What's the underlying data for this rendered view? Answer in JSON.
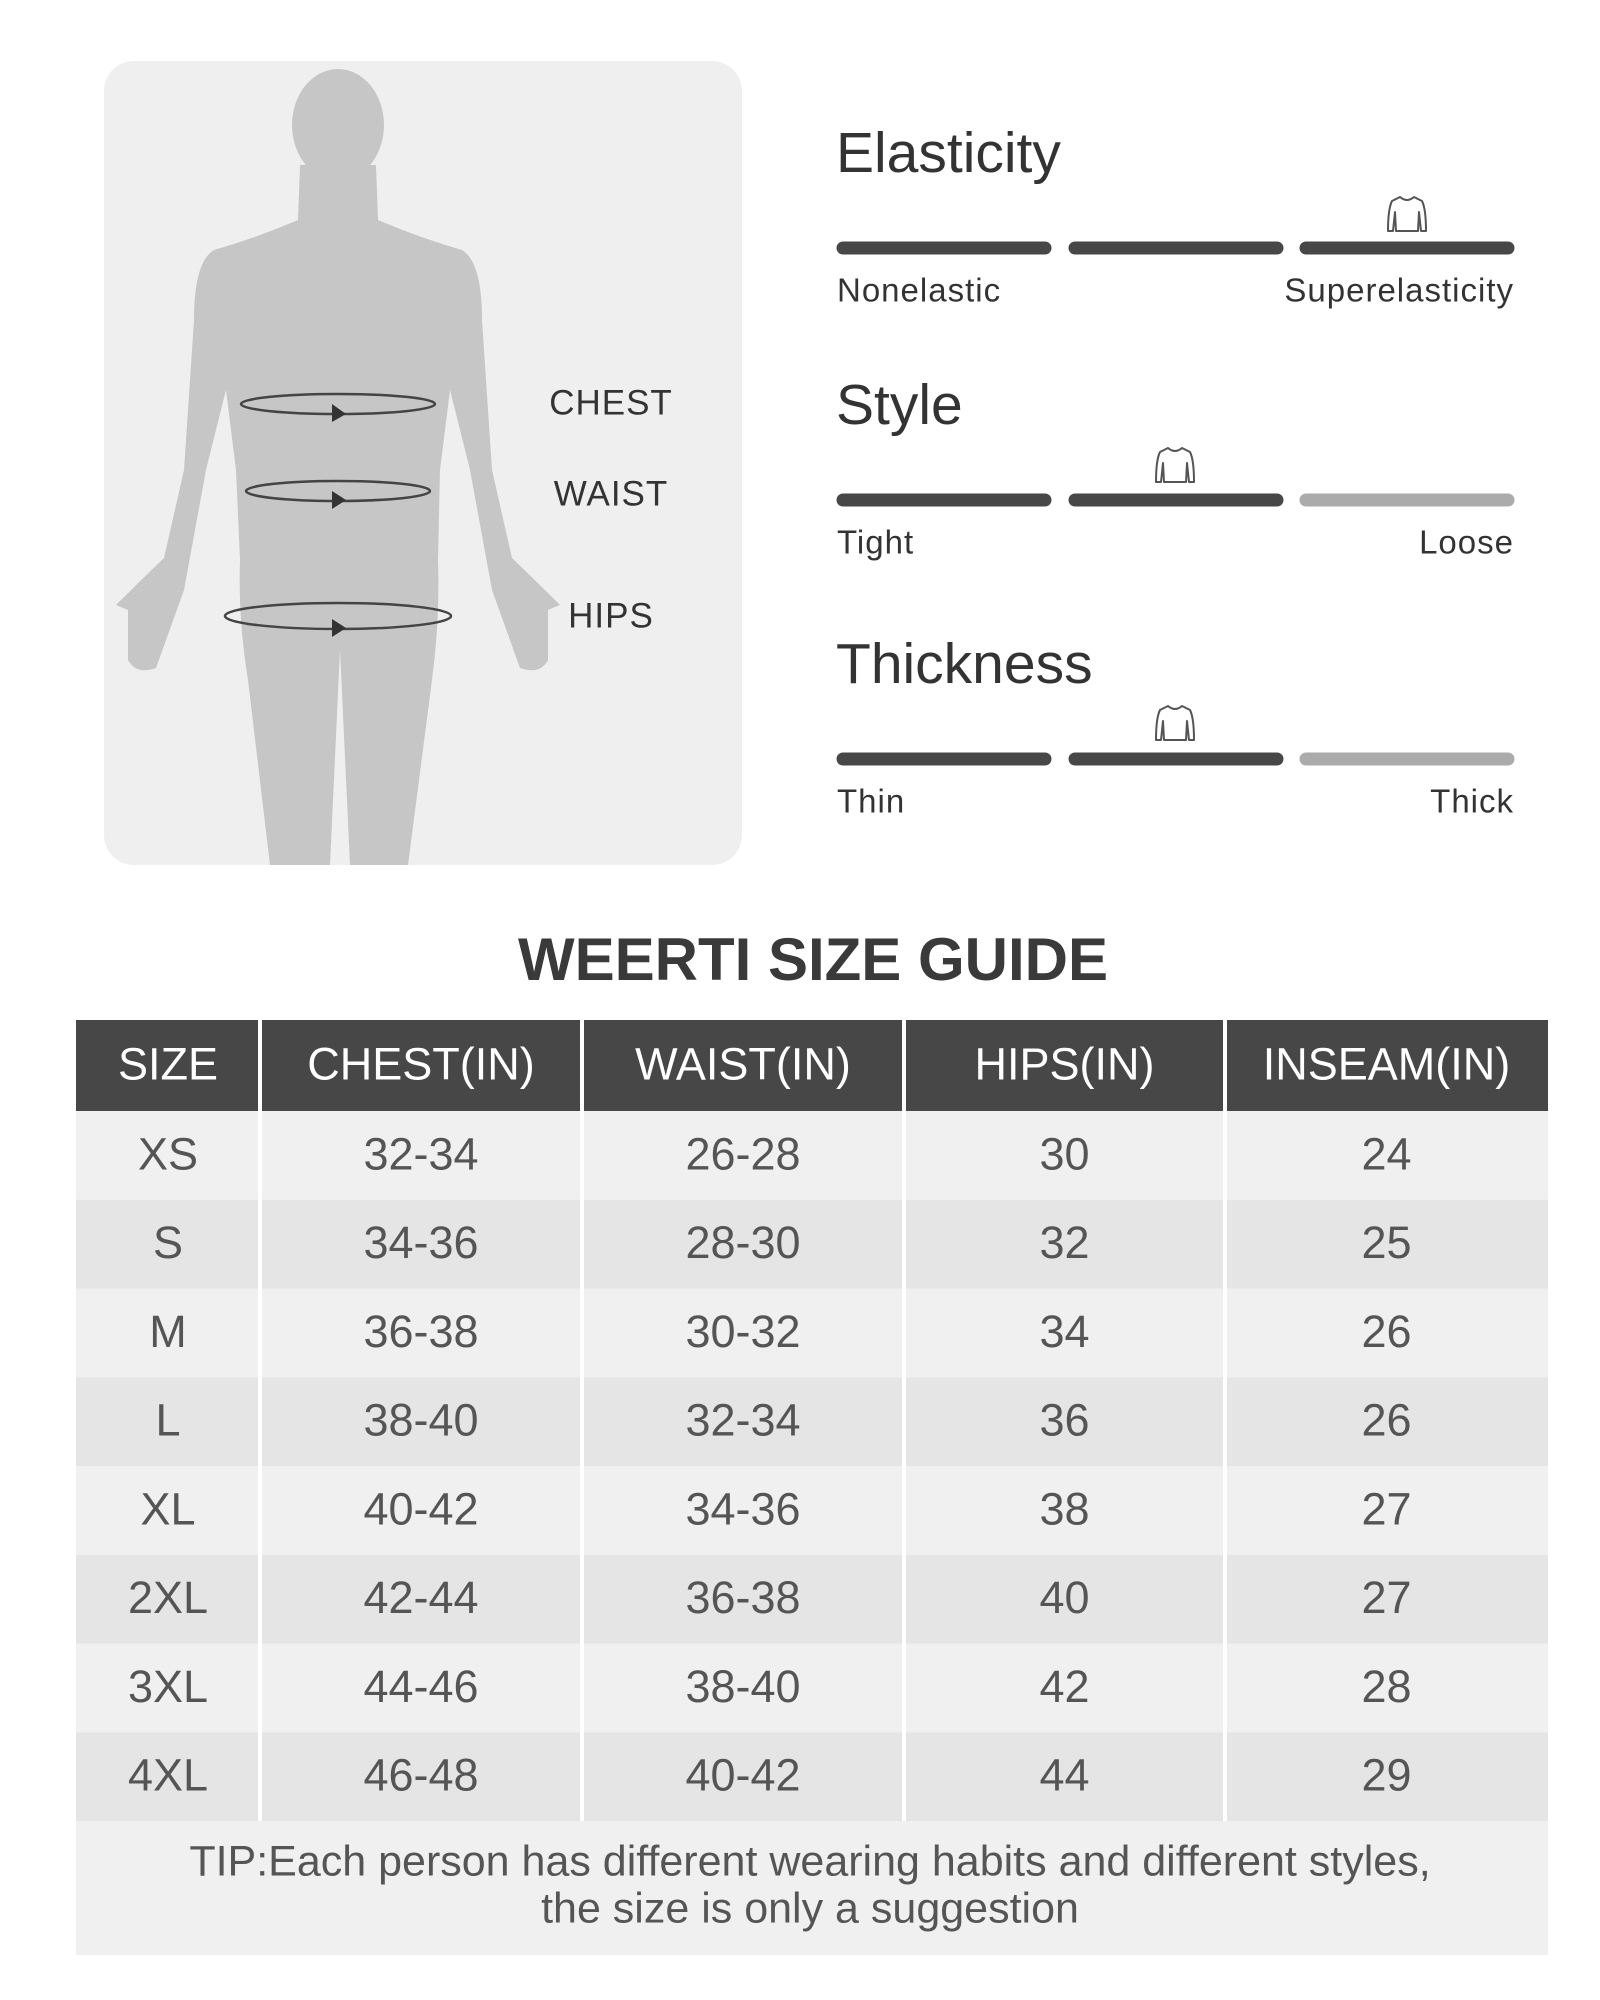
{
  "figure": {
    "labels": [
      "CHEST",
      "WAIST",
      "HIPS"
    ]
  },
  "scales": [
    {
      "title": "Elasticity",
      "low": "Nonelastic",
      "high": "Superelasticity"
    },
    {
      "title": "Style",
      "low": "Tight",
      "high": "Loose"
    },
    {
      "title": "Thickness",
      "low": "Thin",
      "high": "Thick"
    }
  ],
  "table": {
    "title": "WEERTI SIZE GUIDE",
    "header": [
      "SIZE",
      "CHEST(IN)",
      "WAIST(IN)",
      "HIPS(IN)",
      "INSEAM(IN)"
    ],
    "rows": [
      [
        "XS",
        "32-34",
        "26-28",
        "30",
        "24"
      ],
      [
        "S",
        "34-36",
        "28-30",
        "32",
        "25"
      ],
      [
        "M",
        "36-38",
        "30-32",
        "34",
        "26"
      ],
      [
        "L",
        "38-40",
        "32-34",
        "36",
        "26"
      ],
      [
        "XL",
        "40-42",
        "34-36",
        "38",
        "27"
      ],
      [
        "2XL",
        "42-44",
        "36-38",
        "40",
        "27"
      ],
      [
        "3XL",
        "44-46",
        "38-40",
        "42",
        "28"
      ],
      [
        "4XL",
        "46-48",
        "40-42",
        "44",
        "29"
      ]
    ],
    "tip": [
      "TIP:Each person has different wearing habits and different styles,",
      "the size is only a suggestion"
    ]
  }
}
